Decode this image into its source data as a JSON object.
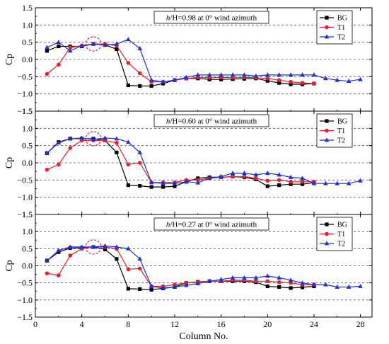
{
  "colors": {
    "BG": "#000000",
    "T1": "#e8202a",
    "T2": "#1f2fe0",
    "grid": "#555555",
    "highlight": "#e8202a"
  },
  "common": {
    "xlabel": "Column No.",
    "ylabel": "Cp",
    "xlim": [
      0,
      29
    ],
    "ylim": [
      -1.5,
      1.5
    ],
    "xticks": [
      "0",
      "4",
      "8",
      "12",
      "16",
      "20",
      "24",
      "28"
    ],
    "yticks": [
      "1.5",
      "1.0",
      "0.5",
      "0.0",
      "−0.5",
      "−1.0",
      "−1.5"
    ],
    "grid_y": [
      1.0,
      0.5,
      0.0,
      -0.5,
      -1.0
    ],
    "highlight_x": 5
  },
  "chart_data": [
    {
      "type": "line",
      "title_prefix": "h",
      "title": "/H=0.98 at 0° wind azimuth",
      "legend": [
        "BG",
        "T1",
        "T2"
      ],
      "series": [
        {
          "name": "BG",
          "x": [
            1,
            2,
            3,
            4,
            5,
            6,
            7,
            8,
            9,
            10,
            11,
            12,
            13,
            14,
            15,
            16,
            17,
            18,
            19,
            20,
            21,
            22,
            23,
            24
          ],
          "values": [
            0.25,
            0.38,
            0.38,
            0.38,
            0.45,
            0.42,
            0.3,
            -0.75,
            -0.77,
            -0.77,
            -0.7,
            -0.6,
            -0.55,
            -0.55,
            -0.58,
            -0.58,
            -0.57,
            -0.56,
            -0.55,
            -0.62,
            -0.68,
            -0.72,
            -0.72,
            -0.7
          ]
        },
        {
          "name": "T1",
          "x": [
            1,
            2,
            3,
            4,
            5,
            6,
            7,
            8,
            9,
            10,
            11,
            12,
            13,
            14,
            15,
            16,
            17,
            18,
            19,
            20,
            21,
            22,
            23,
            24
          ],
          "values": [
            -0.42,
            -0.15,
            0.35,
            0.4,
            0.45,
            0.45,
            0.4,
            -0.1,
            -0.4,
            -0.65,
            -0.65,
            -0.6,
            -0.55,
            -0.52,
            -0.53,
            -0.52,
            -0.53,
            -0.52,
            -0.53,
            -0.55,
            -0.6,
            -0.65,
            -0.68,
            -0.7
          ]
        },
        {
          "name": "T2",
          "x": [
            1,
            2,
            3,
            4,
            5,
            6,
            7,
            8,
            9,
            10,
            11,
            12,
            13,
            14,
            15,
            16,
            17,
            18,
            19,
            20,
            21,
            22,
            23,
            24,
            25,
            26,
            27,
            28
          ],
          "values": [
            0.35,
            0.5,
            0.25,
            0.4,
            0.45,
            0.42,
            0.45,
            0.58,
            0.32,
            -0.6,
            -0.65,
            -0.6,
            -0.52,
            -0.45,
            -0.45,
            -0.45,
            -0.45,
            -0.45,
            -0.48,
            -0.45,
            -0.45,
            -0.45,
            -0.45,
            -0.45,
            -0.55,
            -0.6,
            -0.63,
            -0.58
          ]
        }
      ]
    },
    {
      "type": "line",
      "title_prefix": "h",
      "title": "/H=0.60 at 0° wind azimuth",
      "legend": [
        "BG",
        "T1",
        "T2"
      ],
      "series": [
        {
          "name": "BG",
          "x": [
            1,
            2,
            3,
            4,
            5,
            6,
            7,
            8,
            9,
            10,
            11,
            12,
            13,
            14,
            15,
            16,
            17,
            18,
            19,
            20,
            21,
            22,
            23,
            24
          ],
          "values": [
            0.28,
            0.6,
            0.7,
            0.7,
            0.7,
            0.65,
            0.3,
            -0.65,
            -0.67,
            -0.7,
            -0.7,
            -0.68,
            -0.55,
            -0.45,
            -0.42,
            -0.42,
            -0.4,
            -0.42,
            -0.48,
            -0.68,
            -0.65,
            -0.62,
            -0.62,
            -0.58
          ]
        },
        {
          "name": "T1",
          "x": [
            1,
            2,
            3,
            4,
            5,
            6,
            7,
            8,
            9,
            10,
            11,
            12,
            13,
            14,
            15,
            16,
            17,
            18,
            19,
            20,
            21,
            22,
            23,
            24
          ],
          "values": [
            -0.2,
            -0.05,
            0.43,
            0.65,
            0.65,
            0.65,
            0.58,
            -0.05,
            0.0,
            -0.57,
            -0.57,
            -0.57,
            -0.5,
            -0.5,
            -0.45,
            -0.42,
            -0.4,
            -0.4,
            -0.45,
            -0.52,
            -0.5,
            -0.55,
            -0.55,
            -0.55
          ]
        },
        {
          "name": "T2",
          "x": [
            1,
            2,
            3,
            4,
            5,
            6,
            7,
            8,
            9,
            10,
            11,
            12,
            13,
            14,
            15,
            16,
            17,
            18,
            19,
            20,
            21,
            22,
            23,
            24,
            25,
            26,
            27,
            28
          ],
          "values": [
            0.28,
            0.58,
            0.7,
            0.72,
            0.68,
            0.72,
            0.7,
            0.6,
            0.3,
            -0.57,
            -0.6,
            -0.6,
            -0.55,
            -0.58,
            -0.45,
            -0.4,
            -0.3,
            -0.3,
            -0.35,
            -0.3,
            -0.35,
            -0.42,
            -0.45,
            -0.6,
            -0.6,
            -0.6,
            -0.6,
            -0.52
          ]
        }
      ]
    },
    {
      "type": "line",
      "title_prefix": "h",
      "title": "/H=0.27 at 0° wind azimuth",
      "legend": [
        "BG",
        "T1",
        "T2"
      ],
      "series": [
        {
          "name": "BG",
          "x": [
            1,
            2,
            3,
            4,
            5,
            6,
            7,
            8,
            9,
            10,
            11,
            12,
            13,
            14,
            15,
            16,
            17,
            18,
            19,
            20,
            21,
            22,
            23,
            24
          ],
          "values": [
            0.15,
            0.4,
            0.52,
            0.52,
            0.55,
            0.48,
            0.2,
            -0.67,
            -0.68,
            -0.7,
            -0.66,
            -0.62,
            -0.5,
            -0.47,
            -0.45,
            -0.45,
            -0.45,
            -0.45,
            -0.48,
            -0.6,
            -0.62,
            -0.65,
            -0.63,
            -0.6
          ]
        },
        {
          "name": "T1",
          "x": [
            1,
            2,
            3,
            4,
            5,
            6,
            7,
            8,
            9,
            10,
            11,
            12,
            13,
            14,
            15,
            16,
            17,
            18,
            19,
            20,
            21,
            22,
            23,
            24
          ],
          "values": [
            -0.22,
            -0.28,
            0.3,
            0.5,
            0.55,
            0.55,
            0.5,
            -0.1,
            -0.08,
            -0.6,
            -0.6,
            -0.55,
            -0.5,
            -0.48,
            -0.45,
            -0.45,
            -0.42,
            -0.42,
            -0.45,
            -0.45,
            -0.48,
            -0.5,
            -0.55,
            -0.55
          ]
        },
        {
          "name": "T2",
          "x": [
            1,
            2,
            3,
            4,
            5,
            6,
            7,
            8,
            9,
            10,
            11,
            12,
            13,
            14,
            15,
            16,
            17,
            18,
            19,
            20,
            21,
            22,
            23,
            24,
            25,
            26,
            27,
            28
          ],
          "values": [
            0.15,
            0.45,
            0.55,
            0.55,
            0.55,
            0.58,
            0.55,
            0.5,
            0.2,
            -0.6,
            -0.65,
            -0.62,
            -0.57,
            -0.52,
            -0.45,
            -0.4,
            -0.35,
            -0.35,
            -0.35,
            -0.3,
            -0.35,
            -0.42,
            -0.5,
            -0.55,
            -0.55,
            -0.62,
            -0.62,
            -0.6
          ]
        }
      ]
    }
  ]
}
